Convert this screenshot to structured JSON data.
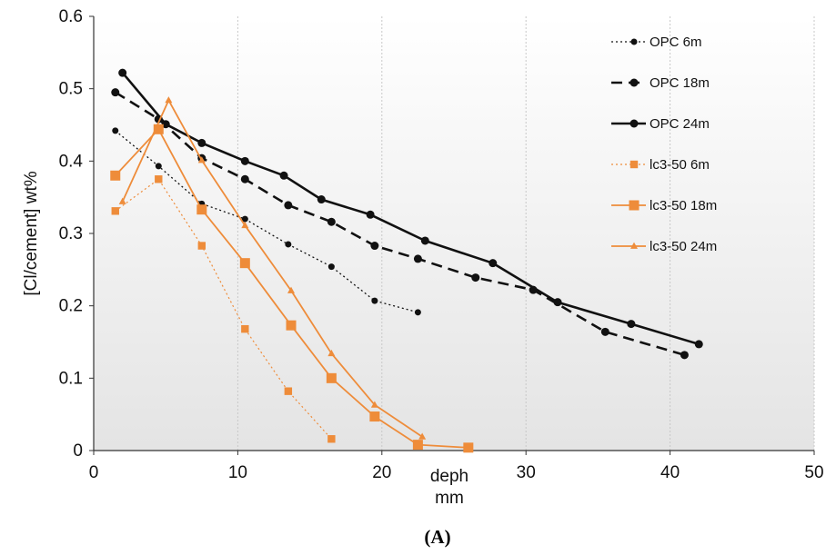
{
  "caption": "(A)",
  "chart_data": {
    "type": "line",
    "xlabel": "deph mm",
    "xlabel_lines": [
      "deph",
      "mm"
    ],
    "ylabel": "[Cl/cement] wt%",
    "xlim": [
      0,
      50
    ],
    "ylim": [
      0,
      0.6
    ],
    "xticks": [
      "0",
      "10",
      "20",
      "30",
      "40",
      "50"
    ],
    "yticks": [
      "0",
      "0.1",
      "0.2",
      "0.3",
      "0.4",
      "0.5",
      "0.6"
    ],
    "grid": "vertical dashed",
    "legend_position": "right",
    "series": [
      {
        "name": "OPC 6m",
        "color": "#111111",
        "line": "dotted",
        "marker": "circle",
        "points": [
          [
            1.5,
            0.442
          ],
          [
            4.5,
            0.393
          ],
          [
            7.5,
            0.341
          ],
          [
            10.5,
            0.32
          ],
          [
            13.5,
            0.285
          ],
          [
            16.5,
            0.254
          ],
          [
            19.5,
            0.207
          ],
          [
            22.5,
            0.191
          ]
        ]
      },
      {
        "name": "OPC 18m",
        "color": "#111111",
        "line": "dashed",
        "marker": "circle",
        "points": [
          [
            1.5,
            0.495
          ],
          [
            4.5,
            0.458
          ],
          [
            7.5,
            0.404
          ],
          [
            10.5,
            0.375
          ],
          [
            13.5,
            0.339
          ],
          [
            16.5,
            0.316
          ],
          [
            19.5,
            0.283
          ],
          [
            22.5,
            0.265
          ],
          [
            26.5,
            0.239
          ],
          [
            30.5,
            0.222
          ],
          [
            35.5,
            0.164
          ],
          [
            41,
            0.132
          ]
        ]
      },
      {
        "name": "OPC 24m",
        "color": "#111111",
        "line": "solid",
        "marker": "circle",
        "points": [
          [
            2,
            0.522
          ],
          [
            5,
            0.451
          ],
          [
            7.5,
            0.425
          ],
          [
            10.5,
            0.4
          ],
          [
            13.2,
            0.38
          ],
          [
            15.8,
            0.347
          ],
          [
            19.2,
            0.326
          ],
          [
            23,
            0.29
          ],
          [
            27.7,
            0.259
          ],
          [
            32.2,
            0.205
          ],
          [
            37.3,
            0.175
          ],
          [
            42,
            0.147
          ]
        ]
      },
      {
        "name": "lc3-50 6m",
        "color": "#ee8c3a",
        "line": "dotted",
        "marker": "square",
        "points": [
          [
            1.5,
            0.331
          ],
          [
            4.5,
            0.375
          ],
          [
            7.5,
            0.283
          ],
          [
            10.5,
            0.168
          ],
          [
            13.5,
            0.082
          ],
          [
            16.5,
            0.016
          ]
        ]
      },
      {
        "name": "lc3-50 18m",
        "color": "#ee8c3a",
        "line": "solid",
        "marker": "square",
        "points": [
          [
            1.5,
            0.38
          ],
          [
            4.5,
            0.444
          ],
          [
            7.5,
            0.333
          ],
          [
            10.5,
            0.259
          ],
          [
            13.7,
            0.173
          ],
          [
            16.5,
            0.1
          ],
          [
            19.5,
            0.047
          ],
          [
            22.5,
            0.008
          ],
          [
            26,
            0.004
          ]
        ]
      },
      {
        "name": "lc3-50 24m",
        "color": "#ee8c3a",
        "line": "solid",
        "marker": "triangle",
        "points": [
          [
            2,
            0.344
          ],
          [
            5.2,
            0.484
          ],
          [
            7.5,
            0.401
          ],
          [
            10.5,
            0.311
          ],
          [
            13.7,
            0.221
          ],
          [
            16.5,
            0.134
          ],
          [
            19.5,
            0.063
          ],
          [
            22.8,
            0.019
          ]
        ]
      }
    ]
  }
}
